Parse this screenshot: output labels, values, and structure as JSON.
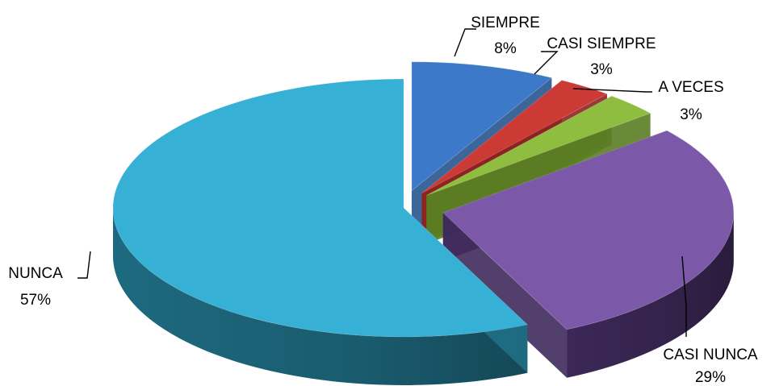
{
  "chart_data": {
    "type": "pie",
    "style": "3d-exploded",
    "legend": "none",
    "data_labels": "outside-with-leader-lines",
    "slices": [
      {
        "name": "SIEMPRE",
        "label": "SIEMPRE",
        "value": 8,
        "percent_label": "8%",
        "color": "#3d79c9",
        "side": "#27558f"
      },
      {
        "name": "CASI SIEMPRE",
        "label": "CASI SIEMPRE",
        "value": 3,
        "percent_label": "3%",
        "color": "#cc3a36",
        "side": "#8e2220"
      },
      {
        "name": "A VECES",
        "label": "A VECES",
        "value": 3,
        "percent_label": "3%",
        "color": "#8fbd3f",
        "side": "#5b7d24"
      },
      {
        "name": "CASI NUNCA",
        "label": "CASI NUNCA",
        "value": 29,
        "percent_label": "29%",
        "color": "#7c59a8",
        "side": "#3f2a5c"
      },
      {
        "name": "NUNCA",
        "label": "NUNCA",
        "value": 57,
        "percent_label": "57%",
        "color": "#36b0d4",
        "side": "#1f6f86"
      }
    ]
  }
}
